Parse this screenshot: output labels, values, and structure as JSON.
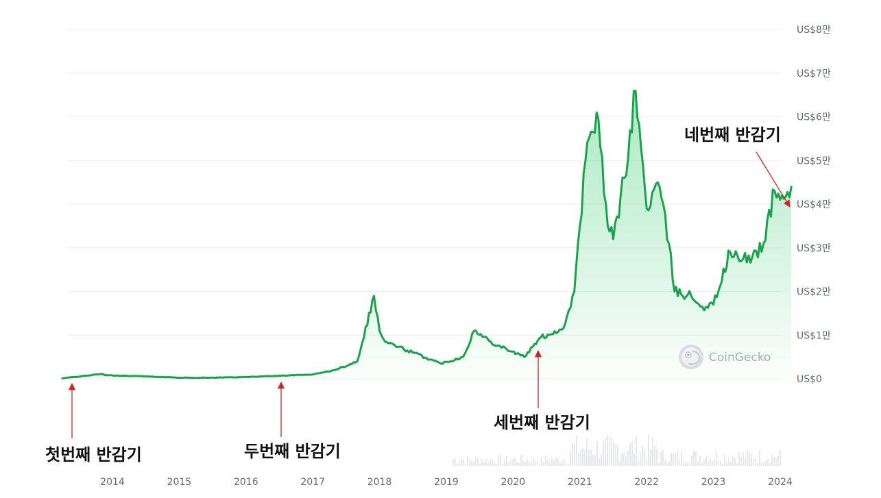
{
  "colors": {
    "line": "#16a34a",
    "fill": "#22c55e",
    "grid": "#eceef1",
    "arrow": "#d32222",
    "volume": "#e6e8ec",
    "tick": "#666a73"
  },
  "watermark": {
    "text": "CoinGecko",
    "icon": "gecko-icon"
  },
  "chart_data": {
    "type": "area",
    "x_axis": {
      "ticks": [
        "2014",
        "2015",
        "2016",
        "2017",
        "2018",
        "2019",
        "2020",
        "2021",
        "2022",
        "2023",
        "2024"
      ],
      "range": [
        "2013-04",
        "2024-03"
      ]
    },
    "y_axis": {
      "ticks": [
        {
          "value": 0,
          "label": "US$0"
        },
        {
          "value": 10000,
          "label": "US$1만"
        },
        {
          "value": 20000,
          "label": "US$2만"
        },
        {
          "value": 30000,
          "label": "US$3만"
        },
        {
          "value": 40000,
          "label": "US$4만"
        },
        {
          "value": 50000,
          "label": "US$5만"
        },
        {
          "value": 60000,
          "label": "US$6만"
        },
        {
          "value": 70000,
          "label": "US$7만"
        },
        {
          "value": 80000,
          "label": "US$8만"
        }
      ],
      "range": [
        0,
        80000
      ],
      "position": "right"
    },
    "grid": true,
    "series": [
      {
        "x": [
          "2013-04",
          "2013-11",
          "2013-12",
          "2014-06",
          "2015-01",
          "2015-06",
          "2016-01",
          "2016-06",
          "2017-01",
          "2017-05",
          "2017-09",
          "2017-12",
          "2018-01",
          "2018-02",
          "2018-06",
          "2018-12",
          "2019-04",
          "2019-06",
          "2019-09",
          "2020-03",
          "2020-06",
          "2020-10",
          "2020-12",
          "2021-01",
          "2021-02",
          "2021-04",
          "2021-06",
          "2021-07",
          "2021-09",
          "2021-11",
          "2022-01",
          "2022-03",
          "2022-05",
          "2022-06",
          "2022-09",
          "2022-11",
          "2023-01",
          "2023-04",
          "2023-06",
          "2023-08",
          "2023-10",
          "2023-12",
          "2024-01",
          "2024-03"
        ],
        "values": [
          100,
          1100,
          800,
          600,
          250,
          250,
          400,
          650,
          1000,
          2000,
          4000,
          19000,
          11000,
          8500,
          6500,
          3500,
          5000,
          11000,
          8500,
          5000,
          9500,
          11500,
          20000,
          35000,
          50000,
          61000,
          35000,
          32000,
          46000,
          66000,
          39000,
          45000,
          31000,
          20000,
          19000,
          16500,
          17000,
          29000,
          27000,
          28000,
          31000,
          43000,
          41000,
          44000
        ]
      }
    ],
    "annotations": [
      {
        "text": "첫번째 반감기",
        "x": "2012-11",
        "y": 0
      },
      {
        "text": "두번째 반감기",
        "x": "2016-07",
        "y": 650
      },
      {
        "text": "세번째 반감기",
        "x": "2020-05",
        "y": 9000
      },
      {
        "text": "네번째 반감기",
        "x": "2024-04",
        "y": 40000
      }
    ]
  }
}
